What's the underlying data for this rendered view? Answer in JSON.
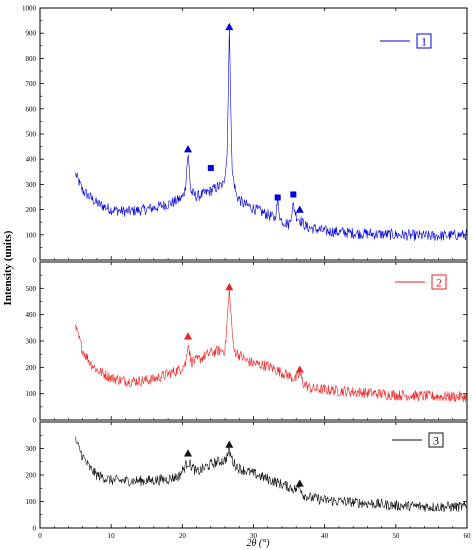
{
  "chart_data": {
    "type": "line",
    "xlabel": "2θ (°)",
    "ylabel": "Intensity (units)",
    "xlim": [
      0,
      60
    ],
    "x_ticks": [
      0,
      10,
      20,
      30,
      40,
      50,
      60
    ],
    "grid": false,
    "panels": [
      {
        "name": "1",
        "color": "#0000dd",
        "ylim": [
          0,
          1000
        ],
        "y_ticks": [
          0,
          100,
          200,
          300,
          400,
          500,
          600,
          700,
          800,
          900,
          1000
        ],
        "x": [
          5,
          6,
          7,
          8,
          10,
          12,
          14,
          16,
          18,
          19,
          20,
          20.4,
          20.8,
          21.2,
          22,
          23,
          24,
          25,
          25.8,
          26.3,
          26.6,
          27,
          27.6,
          28.5,
          30,
          32,
          33,
          33.4,
          33.8,
          35,
          35.6,
          36,
          36.5,
          37.5,
          40,
          45,
          50,
          55,
          60
        ],
        "values": [
          340,
          275,
          250,
          225,
          200,
          192,
          197,
          207,
          222,
          232,
          248,
          280,
          425,
          270,
          252,
          262,
          275,
          290,
          300,
          420,
          915,
          350,
          255,
          225,
          205,
          180,
          165,
          235,
          160,
          140,
          220,
          175,
          160,
          130,
          115,
          105,
          100,
          95,
          100
        ],
        "markers": [
          {
            "shape": "triangle",
            "x": 20.8,
            "y": 440
          },
          {
            "shape": "square",
            "x": 24.0,
            "y": 365
          },
          {
            "shape": "triangle",
            "x": 26.6,
            "y": 925
          },
          {
            "shape": "square",
            "x": 33.4,
            "y": 248
          },
          {
            "shape": "square",
            "x": 35.6,
            "y": 260
          },
          {
            "shape": "triangle",
            "x": 36.5,
            "y": 200
          }
        ]
      },
      {
        "name": "2",
        "color": "#ee2222",
        "ylim": [
          0,
          600
        ],
        "y_ticks": [
          0,
          100,
          200,
          300,
          400,
          500,
          600
        ],
        "x": [
          5,
          6,
          7,
          8,
          10,
          12,
          14,
          16,
          18,
          19.5,
          20.5,
          20.8,
          21.2,
          22,
          23,
          24,
          25,
          26,
          26.6,
          27.2,
          28,
          29,
          30,
          32,
          34,
          36,
          36.5,
          37,
          38,
          40,
          45,
          50,
          55,
          60
        ],
        "values": [
          350,
          265,
          220,
          190,
          160,
          148,
          148,
          155,
          175,
          190,
          215,
          300,
          222,
          225,
          240,
          255,
          262,
          265,
          490,
          265,
          248,
          225,
          215,
          205,
          180,
          155,
          175,
          140,
          120,
          115,
          105,
          95,
          90,
          88
        ],
        "markers": [
          {
            "shape": "triangle",
            "x": 20.8,
            "y": 318
          },
          {
            "shape": "triangle",
            "x": 26.6,
            "y": 505
          },
          {
            "shape": "triangle",
            "x": 36.5,
            "y": 192
          }
        ]
      },
      {
        "name": "3",
        "color": "#111111",
        "ylim": [
          0,
          400
        ],
        "y_ticks": [
          0,
          100,
          200,
          300,
          400
        ],
        "x": [
          5,
          6,
          7,
          8,
          10,
          12,
          14,
          16,
          18,
          19.5,
          20.8,
          22,
          23,
          24,
          25,
          26,
          26.6,
          27.2,
          28,
          30,
          32,
          34,
          36,
          36.5,
          37,
          38,
          40,
          45,
          50,
          55,
          60
        ],
        "values": [
          330,
          270,
          225,
          200,
          180,
          178,
          178,
          180,
          185,
          195,
          250,
          210,
          225,
          240,
          250,
          255,
          290,
          245,
          225,
          205,
          185,
          165,
          145,
          160,
          125,
          115,
          105,
          95,
          85,
          80,
          80
        ],
        "markers": [
          {
            "shape": "triangle",
            "x": 20.8,
            "y": 282
          },
          {
            "shape": "triangle",
            "x": 26.6,
            "y": 315
          },
          {
            "shape": "triangle",
            "x": 36.5,
            "y": 168
          }
        ]
      }
    ]
  }
}
